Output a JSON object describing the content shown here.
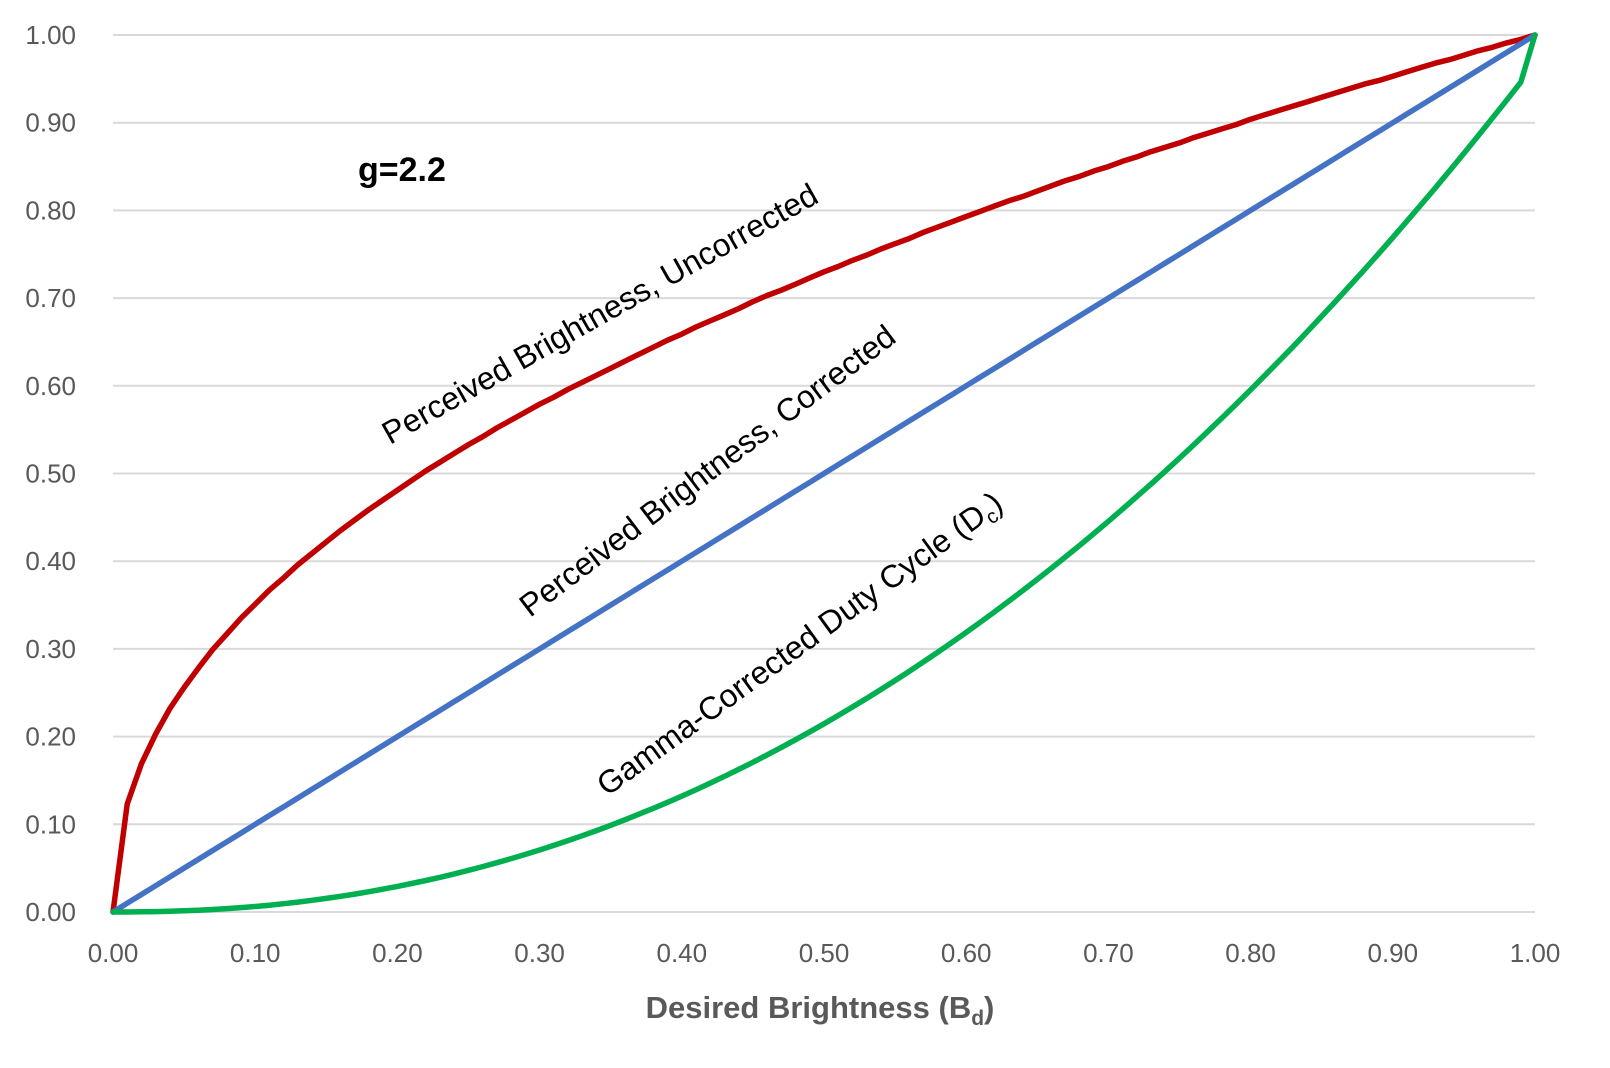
{
  "chart_data": {
    "type": "line",
    "xlabel": {
      "main": "Desired Brightness (B",
      "sub": "d",
      "close": ")"
    },
    "ylabel": "",
    "xlim": [
      0,
      1
    ],
    "ylim": [
      0,
      1
    ],
    "x_ticks": [
      "0.00",
      "0.10",
      "0.20",
      "0.30",
      "0.40",
      "0.50",
      "0.60",
      "0.70",
      "0.80",
      "0.90",
      "1.00"
    ],
    "y_ticks": [
      "0.00",
      "0.10",
      "0.20",
      "0.30",
      "0.40",
      "0.50",
      "0.60",
      "0.70",
      "0.80",
      "0.90",
      "1.00"
    ],
    "grid": true,
    "gamma_annotation": "g=2.2",
    "gamma": 2.2,
    "x": [
      0,
      0.01,
      0.02,
      0.03,
      0.04,
      0.05,
      0.06,
      0.07,
      0.08,
      0.09,
      0.1,
      0.11,
      0.12,
      0.13,
      0.14,
      0.15,
      0.16,
      0.17,
      0.18,
      0.19,
      0.2,
      0.21,
      0.22,
      0.23,
      0.24,
      0.25,
      0.26,
      0.27,
      0.28,
      0.29,
      0.3,
      0.31,
      0.32,
      0.33,
      0.34,
      0.35,
      0.36,
      0.37,
      0.38,
      0.39,
      0.4,
      0.41,
      0.42,
      0.43,
      0.44,
      0.45,
      0.46,
      0.47,
      0.48,
      0.49,
      0.5,
      0.51,
      0.52,
      0.53,
      0.54,
      0.55,
      0.56,
      0.57,
      0.58,
      0.59,
      0.6,
      0.61,
      0.62,
      0.63,
      0.64,
      0.65,
      0.66,
      0.67,
      0.68,
      0.69,
      0.7,
      0.71,
      0.72,
      0.73,
      0.74,
      0.75,
      0.76,
      0.77,
      0.78,
      0.79,
      0.8,
      0.81,
      0.82,
      0.83,
      0.84,
      0.85,
      0.86,
      0.87,
      0.88,
      0.89,
      0.9,
      0.91,
      0.92,
      0.93,
      0.94,
      0.95,
      0.96,
      0.97,
      0.98,
      0.99,
      1.0
    ],
    "series": [
      {
        "label_text": "Perceived Brightness, Uncorrected",
        "color": "#c00000",
        "values": [
          0,
          0.123,
          0.169,
          0.203,
          0.232,
          0.256,
          0.278,
          0.299,
          0.317,
          0.335,
          0.351,
          0.367,
          0.381,
          0.396,
          0.409,
          0.422,
          0.435,
          0.447,
          0.459,
          0.47,
          0.481,
          0.492,
          0.503,
          0.513,
          0.523,
          0.533,
          0.542,
          0.552,
          0.561,
          0.57,
          0.579,
          0.587,
          0.596,
          0.604,
          0.612,
          0.62,
          0.628,
          0.636,
          0.644,
          0.652,
          0.659,
          0.667,
          0.674,
          0.681,
          0.688,
          0.696,
          0.703,
          0.709,
          0.716,
          0.723,
          0.73,
          0.736,
          0.743,
          0.749,
          0.756,
          0.762,
          0.768,
          0.775,
          0.781,
          0.787,
          0.793,
          0.799,
          0.805,
          0.811,
          0.816,
          0.822,
          0.828,
          0.834,
          0.839,
          0.845,
          0.85,
          0.856,
          0.861,
          0.867,
          0.872,
          0.877,
          0.883,
          0.888,
          0.893,
          0.898,
          0.904,
          0.909,
          0.914,
          0.919,
          0.924,
          0.929,
          0.934,
          0.939,
          0.944,
          0.948,
          0.953,
          0.958,
          0.963,
          0.968,
          0.972,
          0.977,
          0.982,
          0.986,
          0.991,
          0.995,
          1.0
        ]
      },
      {
        "label_text": "Perceived Brightness, Corrected",
        "color": "#4472c4",
        "values": [
          0,
          0.01,
          0.02,
          0.03,
          0.04,
          0.05,
          0.06,
          0.07,
          0.08,
          0.09,
          0.1,
          0.11,
          0.12,
          0.13,
          0.14,
          0.15,
          0.16,
          0.17,
          0.18,
          0.19,
          0.2,
          0.21,
          0.22,
          0.23,
          0.24,
          0.25,
          0.26,
          0.27,
          0.28,
          0.29,
          0.3,
          0.31,
          0.32,
          0.33,
          0.34,
          0.35,
          0.36,
          0.37,
          0.38,
          0.39,
          0.4,
          0.41,
          0.42,
          0.43,
          0.44,
          0.45,
          0.46,
          0.47,
          0.48,
          0.49,
          0.5,
          0.51,
          0.52,
          0.53,
          0.54,
          0.55,
          0.56,
          0.57,
          0.58,
          0.59,
          0.6,
          0.61,
          0.62,
          0.63,
          0.64,
          0.65,
          0.66,
          0.67,
          0.68,
          0.69,
          0.7,
          0.71,
          0.72,
          0.73,
          0.74,
          0.75,
          0.76,
          0.77,
          0.78,
          0.79,
          0.8,
          0.81,
          0.82,
          0.83,
          0.84,
          0.85,
          0.86,
          0.87,
          0.88,
          0.89,
          0.9,
          0.91,
          0.92,
          0.93,
          0.94,
          0.95,
          0.96,
          0.97,
          0.98,
          0.99,
          1.0
        ]
      },
      {
        "label_text": {
          "main": "Gamma-Corrected Duty Cycle (D",
          "sub": "c",
          "close": ")"
        },
        "color": "#00b050",
        "values": [
          0,
          4e-05,
          0.00018,
          0.00045,
          0.00083,
          0.00137,
          0.00205,
          0.0029,
          0.00391,
          0.00503,
          0.00631,
          0.00781,
          0.00946,
          0.0113,
          0.01331,
          0.0155,
          0.01787,
          0.02042,
          0.02315,
          0.02606,
          0.02917,
          0.03246,
          0.03593,
          0.0396,
          0.04346,
          0.04751,
          0.05176,
          0.0562,
          0.06084,
          0.06567,
          0.0707,
          0.07594,
          0.08137,
          0.08701,
          0.09285,
          0.09889,
          0.10514,
          0.11159,
          0.11826,
          0.12512,
          0.1322,
          0.13949,
          0.14699,
          0.15469,
          0.16262,
          0.17075,
          0.1791,
          0.18766,
          0.19644,
          0.20543,
          0.21464,
          0.22407,
          0.23371,
          0.24358,
          0.25366,
          0.26397,
          0.2745,
          0.28525,
          0.29622,
          0.30742,
          0.31884,
          0.33048,
          0.34235,
          0.35445,
          0.36678,
          0.37933,
          0.39211,
          0.40512,
          0.41836,
          0.43183,
          0.44553,
          0.45946,
          0.47363,
          0.48803,
          0.50266,
          0.51753,
          0.53263,
          0.54797,
          0.56354,
          0.57935,
          0.5954,
          0.61169,
          0.62821,
          0.64497,
          0.66198,
          0.67922,
          0.69671,
          0.71443,
          0.7324,
          0.75061,
          0.76907,
          0.78776,
          0.80671,
          0.82589,
          0.84533,
          0.86501,
          0.88493,
          0.90511,
          0.92553,
          0.9462,
          1.0
        ]
      }
    ]
  }
}
